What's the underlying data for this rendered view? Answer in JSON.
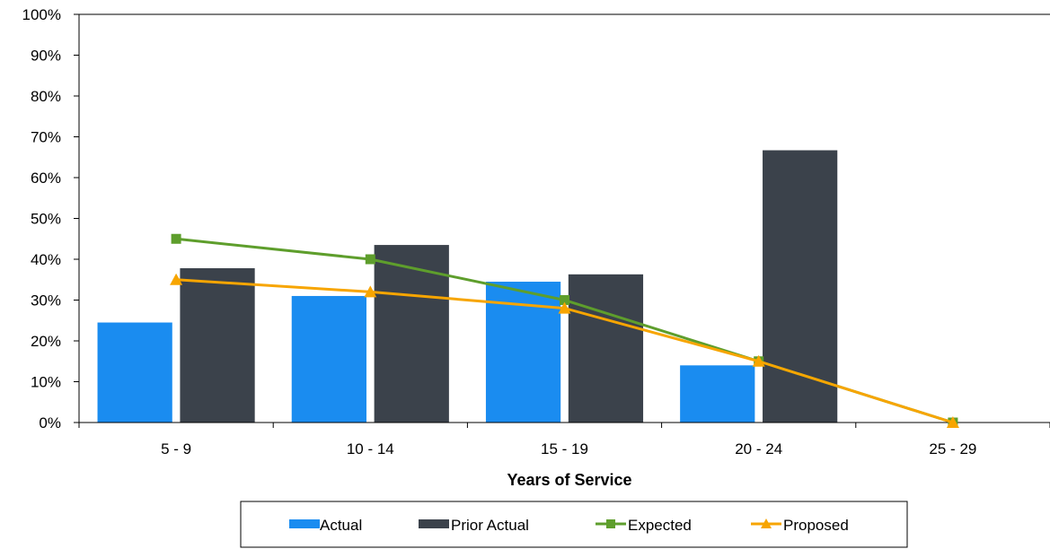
{
  "chart_data": {
    "type": "bar",
    "title": "",
    "xlabel": "Years of Service",
    "ylabel": "",
    "categories": [
      "5 - 9",
      "10 - 14",
      "15 - 19",
      "20 - 24",
      "25 - 29"
    ],
    "ylim": [
      0,
      100
    ],
    "yticks": [
      "0%",
      "10%",
      "20%",
      "30%",
      "40%",
      "50%",
      "60%",
      "70%",
      "80%",
      "90%",
      "100%"
    ],
    "grid": false,
    "legend_position": "bottom",
    "bar_series": [
      {
        "name": "Actual",
        "color": "#1a8cf0",
        "values": [
          24.5,
          31,
          34.5,
          14,
          null
        ]
      },
      {
        "name": "Prior Actual",
        "color": "#3b424b",
        "values": [
          37.8,
          43.5,
          36.3,
          66.7,
          null
        ]
      }
    ],
    "line_series": [
      {
        "name": "Expected",
        "color": "#5e9e2c",
        "marker": "square",
        "values": [
          45,
          40,
          30,
          15,
          0
        ]
      },
      {
        "name": "Proposed",
        "color": "#f7a500",
        "marker": "triangle",
        "values": [
          35,
          32,
          28,
          15,
          0
        ]
      }
    ]
  }
}
